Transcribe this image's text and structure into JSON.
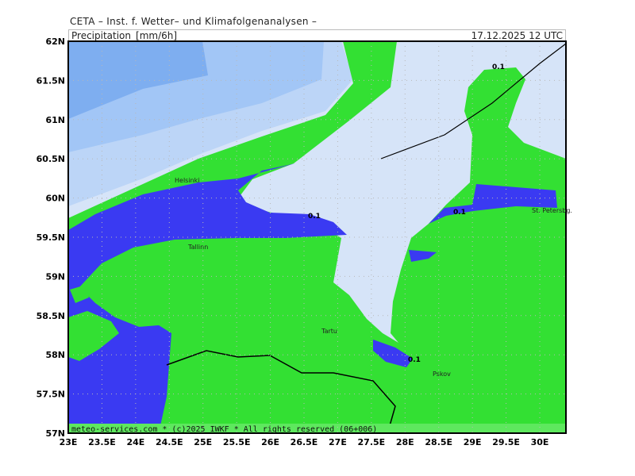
{
  "header": {
    "institute": "CETA – Inst. f. Wetter– und Klimafolgenanalysen –",
    "parameter": "Precipitation_[mm/6h]",
    "valid_time": "17.12.2025 12 UTC"
  },
  "footer": "meteo-services.com * (c)2025 IWKF * All rights reserved (06+006)",
  "axes": {
    "lon_ticks": [
      "23E",
      "23.5E",
      "24E",
      "24.5E",
      "25E",
      "25.5E",
      "26E",
      "26.5E",
      "27E",
      "27.5E",
      "28E",
      "28.5E",
      "29E",
      "29.5E",
      "30E"
    ],
    "lat_ticks": [
      "62N",
      "61.5N",
      "61N",
      "60.5N",
      "60N",
      "59.5N",
      "59N",
      "58.5N",
      "58N",
      "57.5N",
      "57N"
    ]
  },
  "cities": [
    "Helsinki",
    "Tallinn",
    "Tartu",
    "Pskov",
    "St. Petersbg."
  ],
  "contour_labels": [
    "0.1",
    "0.1",
    "0.1",
    "0.1"
  ],
  "colors": {
    "no_precip": "#d6e4f8",
    "light_blue_1": "#bcd5f7",
    "light_blue_2": "#a2c6f6",
    "light_blue_3": "#7eaef0",
    "green": "#33e033",
    "blue": "#3a3af2"
  }
}
